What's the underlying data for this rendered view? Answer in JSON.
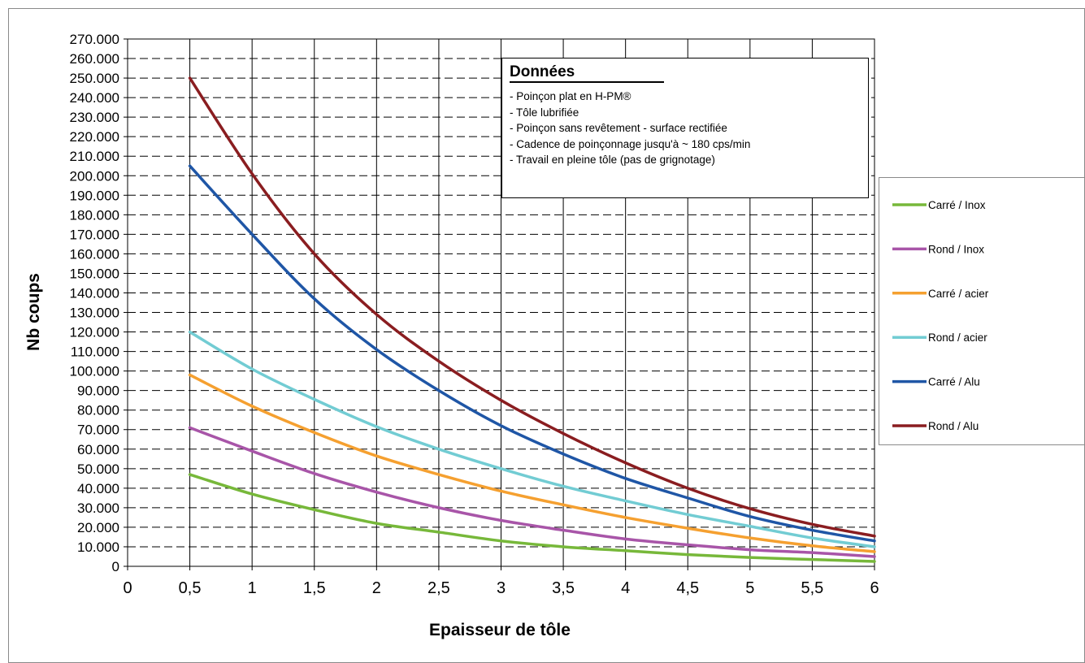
{
  "info_box": {
    "title": "Données",
    "lines": [
      "- Poinçon plat en H-PM®",
      "- Tôle lubrifiée",
      "- Poinçon sans revêtement - surface rectifiée",
      "- Cadence de poinçonnage jusqu'à ~ 180 cps/min",
      "- Travail en pleine tôle (pas de grignotage)"
    ]
  },
  "chart_data": {
    "type": "line",
    "xlabel": "Epaisseur de tôle",
    "ylabel": "Nb coups",
    "xlim": [
      0,
      6
    ],
    "ylim": [
      0,
      270000
    ],
    "x_ticks": [
      "0",
      "0,5",
      "1",
      "1,5",
      "2",
      "2,5",
      "3",
      "3,5",
      "4",
      "4,5",
      "5",
      "5,5",
      "6"
    ],
    "y_ticks": [
      "0",
      "10.000",
      "20.000",
      "30.000",
      "40.000",
      "50.000",
      "60.000",
      "70.000",
      "80.000",
      "90.000",
      "100.000",
      "110.000",
      "120.000",
      "130.000",
      "140.000",
      "150.000",
      "160.000",
      "170.000",
      "180.000",
      "190.000",
      "200.000",
      "210.000",
      "220.000",
      "230.000",
      "240.000",
      "250.000",
      "260.000",
      "270.000"
    ],
    "grid": true,
    "legend_position": "right",
    "x": [
      0.5,
      1,
      1.5,
      2,
      2.5,
      3,
      3.5,
      4,
      4.5,
      5,
      5.5,
      6
    ],
    "series": [
      {
        "name": "Carré / Inox",
        "color": "#77b83a",
        "values": [
          47000,
          37000,
          29000,
          22000,
          17500,
          13000,
          10000,
          8000,
          6000,
          4500,
          3500,
          2500
        ]
      },
      {
        "name": "Rond / Inox",
        "color": "#a855a8",
        "values": [
          71000,
          59000,
          47500,
          38000,
          30000,
          23500,
          18500,
          14000,
          11000,
          8500,
          7000,
          5000
        ]
      },
      {
        "name": "Carré / acier",
        "color": "#f5a030",
        "values": [
          98000,
          82000,
          68500,
          56500,
          47000,
          38500,
          31500,
          25000,
          19500,
          14500,
          10500,
          7500
        ]
      },
      {
        "name": "Rond / acier",
        "color": "#72ccd3",
        "values": [
          120000,
          101000,
          85500,
          71500,
          60000,
          50000,
          41000,
          33500,
          26500,
          20500,
          14500,
          10000
        ]
      },
      {
        "name": "Carré / Alu",
        "color": "#1f56a6",
        "values": [
          205000,
          170000,
          137000,
          111000,
          90000,
          72000,
          57500,
          45000,
          35000,
          25500,
          18500,
          13000
        ]
      },
      {
        "name": "Rond / Alu",
        "color": "#8a1d20",
        "values": [
          250000,
          201000,
          160000,
          129000,
          105000,
          85000,
          68000,
          53000,
          40000,
          29500,
          21500,
          15500
        ]
      }
    ]
  }
}
